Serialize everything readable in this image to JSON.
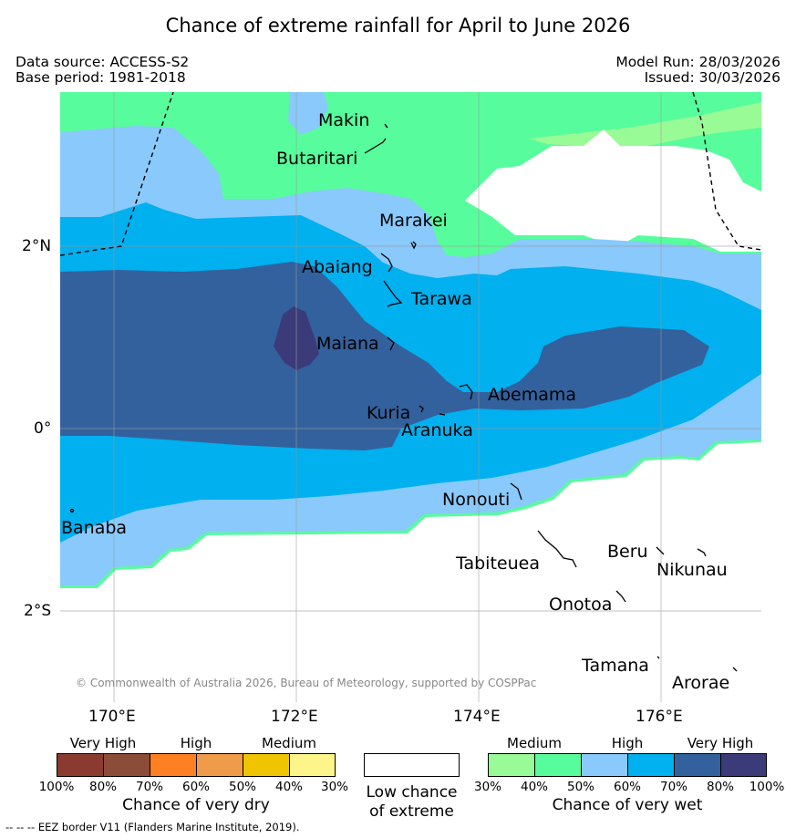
{
  "title": "Chance of extreme rainfall for April to June 2026",
  "meta": {
    "data_source": "Data source: ACCESS-S2",
    "base_period": "Base period: 1981-2018",
    "model_run": "Model Run: 28/03/2026",
    "issued": "Issued: 30/03/2026"
  },
  "map": {
    "lat_labels": [
      "2°N",
      "0°",
      "2°S"
    ],
    "lon_labels": [
      "170°E",
      "172°E",
      "174°E",
      "176°E"
    ],
    "copyright": "© Commonwealth of Australia 2026, Bureau of Meteorology, supported by COSPPac",
    "places": [
      "Makin",
      "Butaritari",
      "Marakei",
      "Abaiang",
      "Tarawa",
      "Maiana",
      "Abemama",
      "Kuria",
      "Aranuka",
      "Nonouti",
      "Banaba",
      "Tabiteuea",
      "Beru",
      "Nikunau",
      "Onotoa",
      "Tamana",
      "Arorae"
    ]
  },
  "legend": {
    "dry": {
      "categories": [
        "Very High",
        "High",
        "Medium"
      ],
      "ticks": [
        "100%",
        "80%",
        "70%",
        "60%",
        "50%",
        "40%",
        "30%"
      ],
      "caption": "Chance of very dry",
      "colors": [
        "#8b3a2f",
        "#8c4c3a",
        "#ff8022",
        "#ef9b4a",
        "#efc400",
        "#fef58a"
      ]
    },
    "low": {
      "caption_line1": "Low chance",
      "caption_line2": "of extreme",
      "color": "#ffffff"
    },
    "wet": {
      "categories": [
        "Medium",
        "High",
        "Very High"
      ],
      "ticks": [
        "30%",
        "40%",
        "50%",
        "60%",
        "70%",
        "80%",
        "100%"
      ],
      "caption": "Chance of very wet",
      "colors": [
        "#99fb95",
        "#57fd9c",
        "#89c9fb",
        "#00b0ef",
        "#33619d",
        "#3b3b79"
      ]
    }
  },
  "footer": "--  --  -- EEZ border V11 (Flanders Marine Institute, 2019).",
  "colors": {
    "very_high_wet": "#3b3b79",
    "high_wet_80": "#33619d",
    "wet_60": "#00b0ef",
    "wet_50": "#89c9fb",
    "wet_40": "#57fd9c",
    "wet_30": "#99fb95",
    "low": "#ffffff"
  }
}
